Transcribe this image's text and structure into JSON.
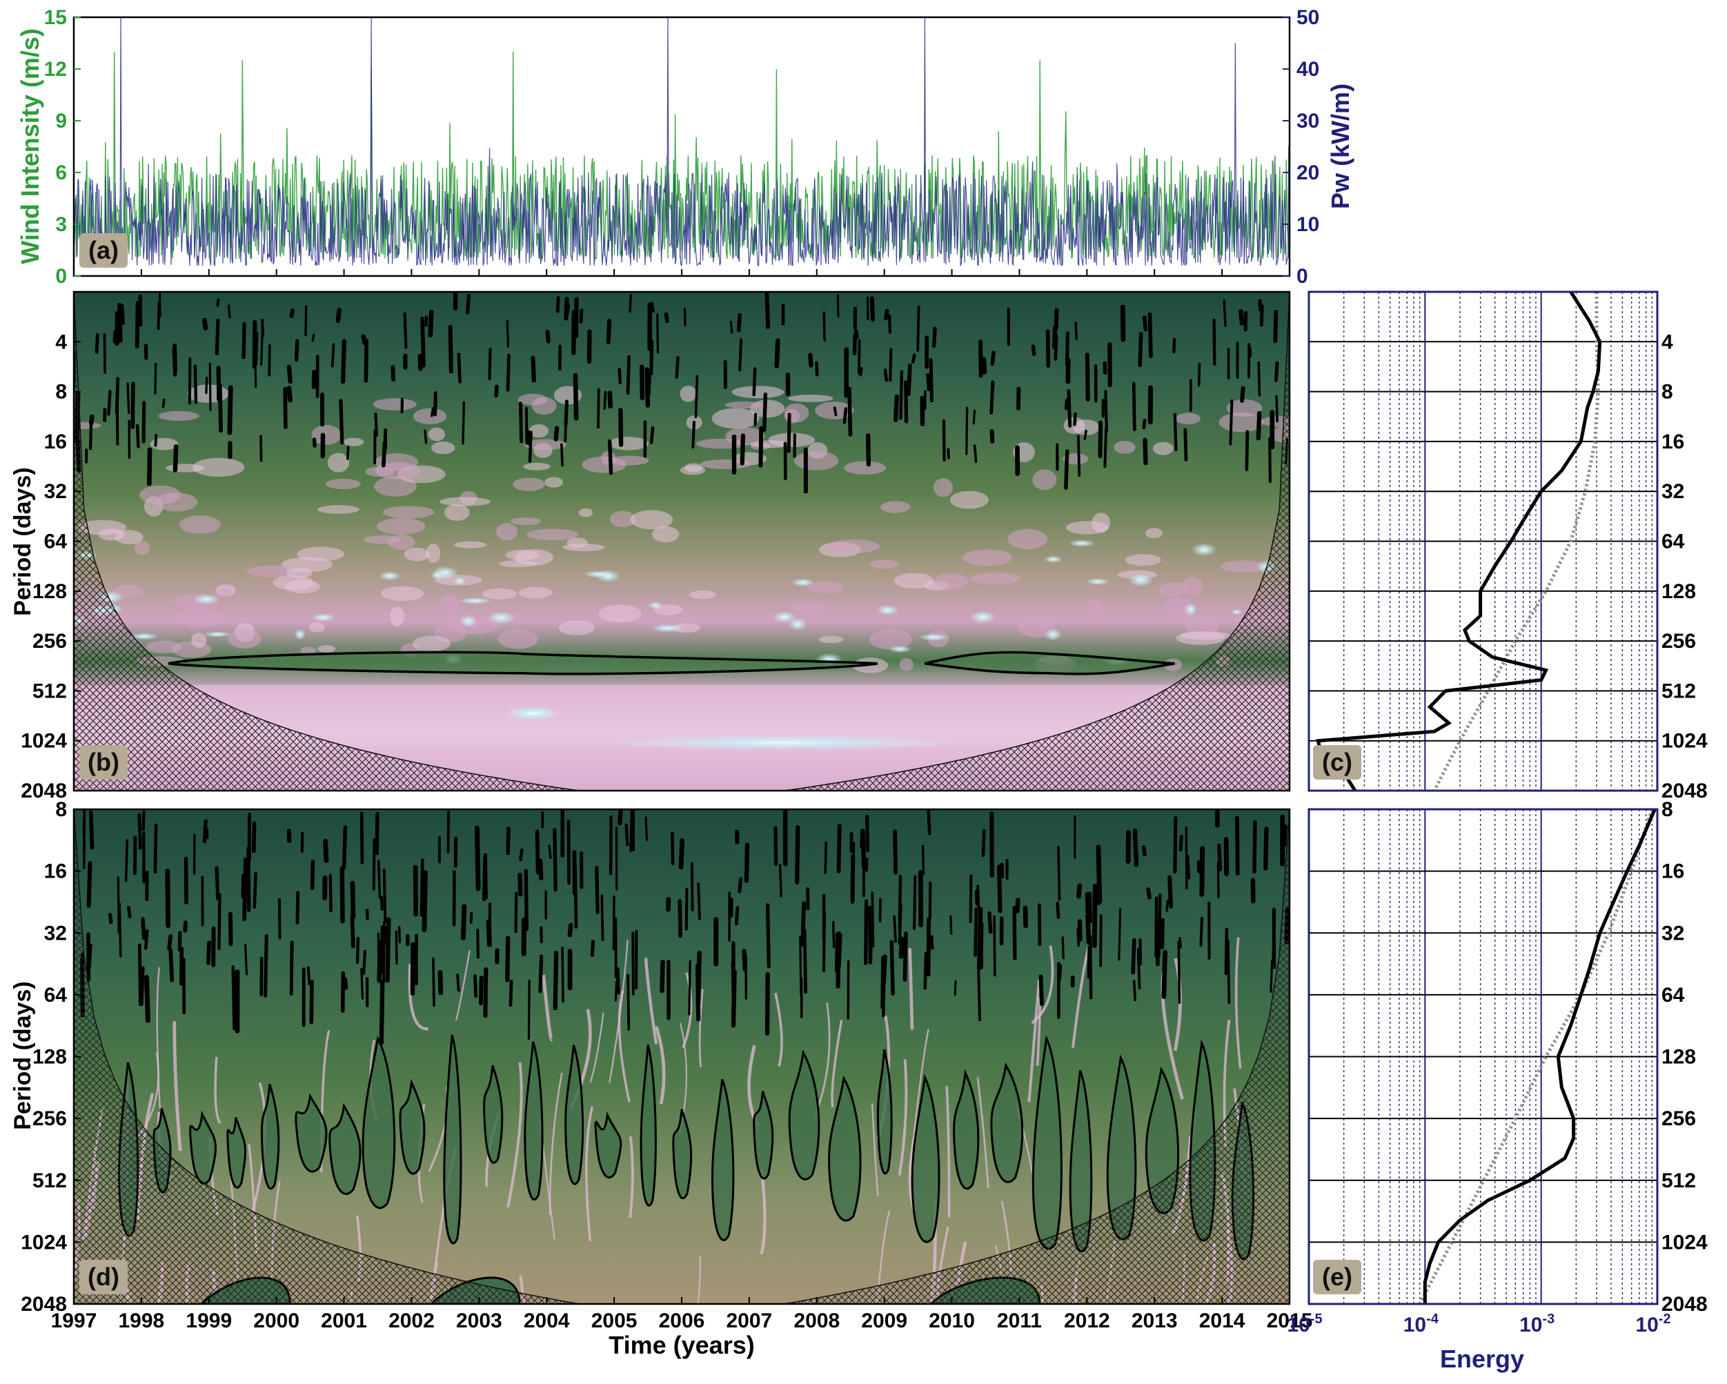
{
  "colors": {
    "wind": "#2e9e3a",
    "power": "#2b2b8c",
    "axis_blue": "#1f1f7a",
    "contour": "#000000",
    "label_bg": "#b5aa93",
    "global_spectrum": "#000000",
    "red_noise": "#8c8c8c",
    "spectrum_deep": "#1f4b40",
    "spectrum_mid": "#5c7f4c",
    "spectrum_high": "#e0b7cf",
    "spectrum_peak": "#c8f0f8"
  },
  "chart_data": [
    {
      "id": "a",
      "panel_label": "(a)",
      "type": "line",
      "x_ticks": [
        "1997",
        "1998",
        "1999",
        "2000",
        "2001",
        "2002",
        "2003",
        "2004",
        "2005",
        "2006",
        "2007",
        "2008",
        "2009",
        "2010",
        "2011",
        "2012",
        "2013",
        "2014",
        "2015"
      ],
      "xlim": [
        1997,
        2015
      ],
      "left_axis": {
        "label": "Wind Intensity (m/s)",
        "ylim": [
          0,
          15
        ],
        "ticks": [
          "0",
          "3",
          "6",
          "9",
          "12",
          "15"
        ]
      },
      "right_axis": {
        "label": "Pw (kW/m)",
        "ylim": [
          0,
          50
        ],
        "ticks": [
          "0",
          "10",
          "20",
          "30",
          "40",
          "50"
        ]
      },
      "series": [
        {
          "axis": "left",
          "color": "#2e9e3a",
          "typical_range": [
            1,
            7
          ],
          "peaks": [
            [
              1997.6,
              13
            ],
            [
              1999.5,
              12.5
            ],
            [
              2001.4,
              12
            ],
            [
              2003.5,
              13
            ],
            [
              2007.4,
              12
            ],
            [
              2011.3,
              12.5
            ]
          ]
        },
        {
          "axis": "right",
          "color": "#2b2b8c",
          "typical_range": [
            2,
            20
          ],
          "peaks": [
            [
              1997.7,
              50
            ],
            [
              2001.4,
              50
            ],
            [
              2005.8,
              50
            ],
            [
              2009.6,
              50
            ],
            [
              2014.2,
              45
            ]
          ]
        }
      ]
    },
    {
      "id": "b",
      "panel_label": "(b)",
      "type": "heatmap",
      "xlim": [
        1997,
        2015
      ],
      "y_scale": "log2",
      "ylabel": "Period (days)",
      "y_ticks": [
        "4",
        "8",
        "16",
        "32",
        "64",
        "128",
        "256",
        "512",
        "1024",
        "2048"
      ],
      "ylim": [
        2,
        2048
      ],
      "high_power_bands": [
        {
          "period": 350,
          "start": 1998.4,
          "end": 2008.9
        },
        {
          "period": 350,
          "start": 2009.6,
          "end": 2013.3
        },
        {
          "period": 700,
          "start": 1997,
          "end": 2015
        }
      ]
    },
    {
      "id": "c",
      "panel_label": "(c)",
      "type": "line",
      "x_scale": "log10",
      "xlim": [
        1e-05,
        0.01
      ],
      "y_scale": "log2",
      "y_ticks": [
        "4",
        "8",
        "16",
        "32",
        "64",
        "128",
        "256",
        "512",
        "1024",
        "2048"
      ],
      "ylim": [
        2,
        2048
      ],
      "series": [
        {
          "style": "solid",
          "points": [
            [
              2,
              0.0018
            ],
            [
              3,
              0.0026
            ],
            [
              4,
              0.0032
            ],
            [
              6,
              0.0031
            ],
            [
              8,
              0.0028
            ],
            [
              10,
              0.0025
            ],
            [
              16,
              0.0022
            ],
            [
              24,
              0.0015
            ],
            [
              32,
              0.001
            ],
            [
              48,
              0.0007
            ],
            [
              64,
              0.00055
            ],
            [
              90,
              0.0004
            ],
            [
              128,
              0.0003
            ],
            [
              180,
              0.0003
            ],
            [
              220,
              0.00022
            ],
            [
              256,
              0.00024
            ],
            [
              320,
              0.00038
            ],
            [
              384,
              0.0011
            ],
            [
              440,
              0.001
            ],
            [
              512,
              0.00015
            ],
            [
              640,
              0.00011
            ],
            [
              800,
              0.00016
            ],
            [
              900,
              0.00012
            ],
            [
              1024,
              1.2e-05
            ],
            [
              1300,
              1.3e-05
            ],
            [
              1600,
              2e-05
            ],
            [
              2048,
              2.5e-05
            ]
          ]
        },
        {
          "style": "dotted",
          "points": [
            [
              2,
              0.003
            ],
            [
              4,
              0.003
            ],
            [
              8,
              0.0031
            ],
            [
              16,
              0.0029
            ],
            [
              32,
              0.0024
            ],
            [
              64,
              0.0018
            ],
            [
              128,
              0.0011
            ],
            [
              256,
              0.0006
            ],
            [
              512,
              0.00035
            ],
            [
              1024,
              0.0002
            ],
            [
              2048,
              0.00012
            ]
          ]
        }
      ]
    },
    {
      "id": "d",
      "panel_label": "(d)",
      "type": "heatmap",
      "xlabel": "Time (years)",
      "x_ticks": [
        "1997",
        "1998",
        "1999",
        "2000",
        "2001",
        "2002",
        "2003",
        "2004",
        "2005",
        "2006",
        "2007",
        "2008",
        "2009",
        "2010",
        "2011",
        "2012",
        "2013",
        "2014",
        "2015"
      ],
      "xlim": [
        1997,
        2015
      ],
      "y_scale": "log2",
      "ylabel": "Period (days)",
      "y_ticks": [
        "8",
        "16",
        "32",
        "64",
        "128",
        "256",
        "512",
        "1024",
        "2048"
      ],
      "ylim": [
        8,
        2048
      ],
      "high_power_fingers": [
        1997.8,
        1998.3,
        1998.9,
        1999.4,
        1999.9,
        2000.5,
        2001.0,
        2001.5,
        2002.0,
        2002.6,
        2003.2,
        2003.8,
        2004.4,
        2004.9,
        2005.5,
        2006.0,
        2006.6,
        2007.2,
        2007.8,
        2008.4,
        2009.0,
        2009.6,
        2010.2,
        2010.8,
        2011.4,
        2011.9,
        2012.5,
        2013.1,
        2013.7,
        2014.3
      ]
    },
    {
      "id": "e",
      "panel_label": "(e)",
      "type": "line",
      "x_scale": "log10",
      "xlabel": "Energy",
      "xlim": [
        1e-05,
        0.01
      ],
      "x_ticks": [
        "10^-5",
        "10^-4",
        "10^-3",
        "10^-2"
      ],
      "y_scale": "log2",
      "y_ticks": [
        "8",
        "16",
        "32",
        "64",
        "128",
        "256",
        "512",
        "1024",
        "2048"
      ],
      "ylim": [
        8,
        2048
      ],
      "series": [
        {
          "style": "solid",
          "points": [
            [
              8,
              0.0095
            ],
            [
              12,
              0.007
            ],
            [
              16,
              0.0055
            ],
            [
              24,
              0.004
            ],
            [
              32,
              0.0032
            ],
            [
              48,
              0.0026
            ],
            [
              64,
              0.0022
            ],
            [
              90,
              0.0018
            ],
            [
              128,
              0.0014
            ],
            [
              180,
              0.0015
            ],
            [
              256,
              0.0019
            ],
            [
              320,
              0.0019
            ],
            [
              400,
              0.0016
            ],
            [
              512,
              0.0008
            ],
            [
              640,
              0.00035
            ],
            [
              800,
              0.0002
            ],
            [
              1024,
              0.00013
            ],
            [
              1300,
              0.00011
            ],
            [
              1600,
              0.0001
            ],
            [
              2048,
              0.0001
            ]
          ]
        },
        {
          "style": "dotted",
          "points": [
            [
              8,
              0.009
            ],
            [
              16,
              0.006
            ],
            [
              32,
              0.0038
            ],
            [
              64,
              0.0022
            ],
            [
              128,
              0.0011
            ],
            [
              256,
              0.0006
            ],
            [
              512,
              0.00032
            ],
            [
              1024,
              0.00017
            ],
            [
              2048,
              9e-05
            ]
          ]
        }
      ]
    }
  ]
}
